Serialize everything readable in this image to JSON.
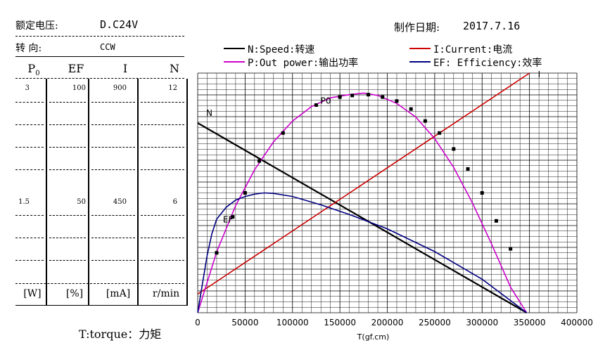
{
  "header": {
    "rated_voltage_label": "额定电压:",
    "rated_voltage_value": "D.C24V",
    "direction_label": "转   向:",
    "direction_value": "CCW",
    "date_label": "制作日期:",
    "date_value": "2017.7.16"
  },
  "table": {
    "columns": [
      {
        "head": "P",
        "sub": "0",
        "top": "3",
        "mid": "1.5",
        "unit": "[W]"
      },
      {
        "head": "EF",
        "sub": "",
        "top": "100",
        "mid": "50",
        "unit": "[%]"
      },
      {
        "head": "I",
        "sub": "",
        "top": "900",
        "mid": "450",
        "unit": "[mA]"
      },
      {
        "head": "N",
        "sub": "",
        "top": "12",
        "mid": "6",
        "unit": "r/min"
      }
    ]
  },
  "footer": {
    "torque_label": "T:torque：力矩"
  },
  "legend": [
    {
      "text": "N:Speed:转速",
      "color": "#000000"
    },
    {
      "text": "I:Current:电流",
      "color": "#cc0000"
    },
    {
      "text": "P:Out power:输出功率",
      "color": "#cc00cc"
    },
    {
      "text": "EF: Efficiency:效率",
      "color": "#000080"
    }
  ],
  "chart_data": {
    "type": "line",
    "xlabel": "T(gf.cm)",
    "xlim": [
      0,
      400000
    ],
    "x_ticks": [
      "0",
      "50000",
      "100000",
      "150000",
      "200000",
      "250000",
      "300000",
      "350000",
      "400000"
    ],
    "grid": true,
    "series": [
      {
        "name": "N",
        "label": "N",
        "color": "#000000",
        "axis_max": 12,
        "x": [
          0,
          347000
        ],
        "y": [
          9.5,
          0
        ]
      },
      {
        "name": "I",
        "label": "I",
        "color": "#cc0000",
        "axis_max": 900,
        "x": [
          0,
          350000
        ],
        "y": [
          70,
          900
        ]
      },
      {
        "name": "P",
        "label": "P0",
        "color": "#cc00cc",
        "axis_max": 3,
        "x": [
          0,
          20000,
          40000,
          60000,
          80000,
          100000,
          120000,
          140000,
          160000,
          175000,
          190000,
          210000,
          230000,
          250000,
          270000,
          290000,
          310000,
          330000,
          347000
        ],
        "y": [
          0,
          0.76,
          1.34,
          1.79,
          2.14,
          2.4,
          2.58,
          2.69,
          2.73,
          2.75,
          2.72,
          2.62,
          2.45,
          2.18,
          1.82,
          1.37,
          0.86,
          0.32,
          0
        ]
      },
      {
        "name": "EF",
        "label": "EF",
        "color": "#000080",
        "axis_max": 100,
        "x": [
          0,
          5000,
          10000,
          15000,
          20000,
          30000,
          40000,
          50000,
          60000,
          70000,
          80000,
          100000,
          130000,
          160000,
          200000,
          250000,
          300000,
          347000
        ],
        "y": [
          0,
          12,
          24,
          33,
          39,
          44,
          47,
          48.5,
          49.5,
          50,
          49.8,
          48.5,
          45,
          41,
          35,
          25.5,
          14,
          0
        ]
      }
    ],
    "markers": {
      "x": [
        20000,
        37000,
        50000,
        65000,
        90000,
        125000,
        150000,
        163000,
        180000,
        195000,
        210000,
        225000,
        240000,
        255000,
        270000,
        285000,
        300000,
        315000,
        330000
      ],
      "y": [
        0.75,
        1.2,
        1.5,
        1.9,
        2.25,
        2.6,
        2.7,
        2.72,
        2.73,
        2.7,
        2.65,
        2.55,
        2.4,
        2.25,
        2.05,
        1.8,
        1.5,
        1.15,
        0.8
      ]
    }
  }
}
